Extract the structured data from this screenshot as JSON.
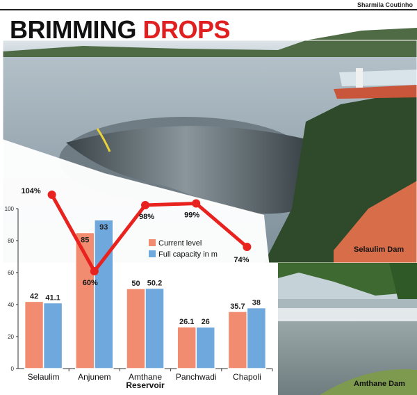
{
  "credit": "Sharmila Coutinho",
  "title": {
    "word1": "BRIMMING",
    "word2": "DROPS"
  },
  "photo_labels": {
    "selaulim": "Selaulim Dam",
    "amthane": "Amthane Dam"
  },
  "colors": {
    "current": "#f28c70",
    "full": "#6fa8dc",
    "line": "#e8231f",
    "title_red": "#e02020"
  },
  "chart_data": {
    "type": "bar",
    "categories": [
      "Selaulim",
      "Anjunem",
      "Amthane Reservoir",
      "Panchwadi",
      "Chapoli"
    ],
    "category_labels": [
      [
        "Selaulim"
      ],
      [
        "Anjunem"
      ],
      [
        "Amthane",
        "Reservoir"
      ],
      [
        "Panchwadi"
      ],
      [
        "Chapoli"
      ]
    ],
    "series": [
      {
        "name": "Current level",
        "values": [
          42,
          85,
          50,
          26.1,
          35.7
        ],
        "labels": [
          "42",
          "85",
          "50",
          "26.1",
          "35.7"
        ]
      },
      {
        "name": "Full capacity in m",
        "values": [
          41.1,
          93,
          50.2,
          26,
          38
        ],
        "labels": [
          "41.1",
          "93",
          "50.2",
          "26",
          "38"
        ]
      }
    ],
    "percent_line": {
      "values": [
        104,
        60,
        98,
        99,
        74
      ],
      "labels": [
        "104%",
        "60%",
        "98%",
        "99%",
        "74%"
      ]
    },
    "ylim": [
      0,
      100
    ],
    "yticks": [
      0,
      20,
      40,
      60,
      80,
      100
    ],
    "legend_position": "center",
    "grid": false
  }
}
